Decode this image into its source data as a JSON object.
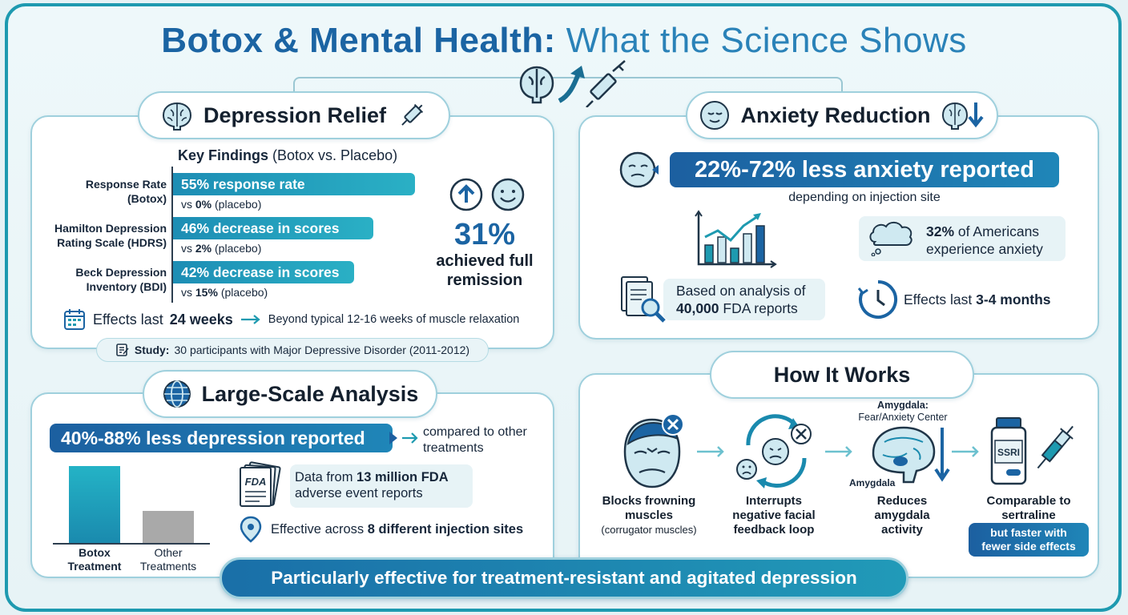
{
  "title": {
    "bold": "Botox & Mental Health:",
    "light": "What the Science Shows"
  },
  "depression": {
    "heading": "Depression Relief",
    "key_findings_bold": "Key Findings",
    "key_findings_rest": "(Botox vs. Placebo)",
    "rows": [
      {
        "label_line1": "Response Rate",
        "label_line2": "(Botox)",
        "bar_text": "55% response rate",
        "vs_prefix": "vs",
        "vs_value": "0%",
        "vs_suffix": "(placebo)"
      },
      {
        "label_line1": "Hamilton Depression",
        "label_line2": "Rating Scale (HDRS)",
        "bar_text": "46% decrease in scores",
        "vs_prefix": "vs",
        "vs_value": "2%",
        "vs_suffix": "(placebo)"
      },
      {
        "label_line1": "Beck Depression",
        "label_line2": "Inventory (BDI)",
        "bar_text": "42% decrease in scores",
        "vs_prefix": "vs",
        "vs_value": "15%",
        "vs_suffix": "(placebo)"
      }
    ],
    "remission_value": "31%",
    "remission_line1": "achieved full",
    "remission_line2": "remission",
    "effects_prefix": "Effects last",
    "effects_value": "24 weeks",
    "effects_note": "Beyond typical 12-16 weeks of muscle relaxation",
    "study_label": "Study:",
    "study_text": "30 participants with Major Depressive Disorder (2011-2012)"
  },
  "anxiety": {
    "heading": "Anxiety Reduction",
    "banner": "22%-72% less anxiety reported",
    "sub": "depending on injection site",
    "americans_value": "32%",
    "americans_rest1": "of Americans",
    "americans_rest2": "experience anxiety",
    "analysis_line1": "Based on analysis of",
    "analysis_value": "40,000",
    "analysis_rest": "FDA reports",
    "effects_prefix": "Effects last",
    "effects_value": "3-4 months"
  },
  "large_scale": {
    "heading": "Large-Scale Analysis",
    "banner": "40%-88% less depression reported",
    "compare_line1": "compared to other",
    "compare_line2": "treatments",
    "bars": [
      {
        "label_line1": "Botox",
        "label_line2": "Treatment",
        "level": 1.0
      },
      {
        "label_line1": "Other",
        "label_line2": "Treatments",
        "level": 0.42
      }
    ],
    "data_prefix": "Data from",
    "data_value": "13 million FDA",
    "data_rest": "adverse event reports",
    "sites_prefix": "Effective across",
    "sites_value": "8 different injection sites",
    "fda_stamp": "FDA"
  },
  "how_it_works": {
    "heading": "How It Works",
    "steps": [
      {
        "line1": "Blocks frowning",
        "line2": "muscles",
        "sub": "(corrugator muscles)"
      },
      {
        "line1": "Interrupts",
        "line2": "negative facial",
        "line3": "feedback loop"
      },
      {
        "line1": "Reduces",
        "line2": "amygdala",
        "line3": "activity"
      },
      {
        "line1": "Comparable to",
        "line2": "sertraline"
      }
    ],
    "amygdala_title": "Amygdala:",
    "amygdala_sub": "Fear/Anxiety Center",
    "amygdala_label": "Amygdala",
    "ssri_label": "SSRI",
    "ssri_note_line1": "but faster with",
    "ssri_note_line2": "fewer side effects"
  },
  "footer": "Particularly effective for treatment-resistant and agitated depression",
  "colors": {
    "navy": "#1b64a3",
    "teal": "#1e9ab0",
    "border": "#9fd0dd",
    "grey_bar": "#a9a9a9"
  }
}
